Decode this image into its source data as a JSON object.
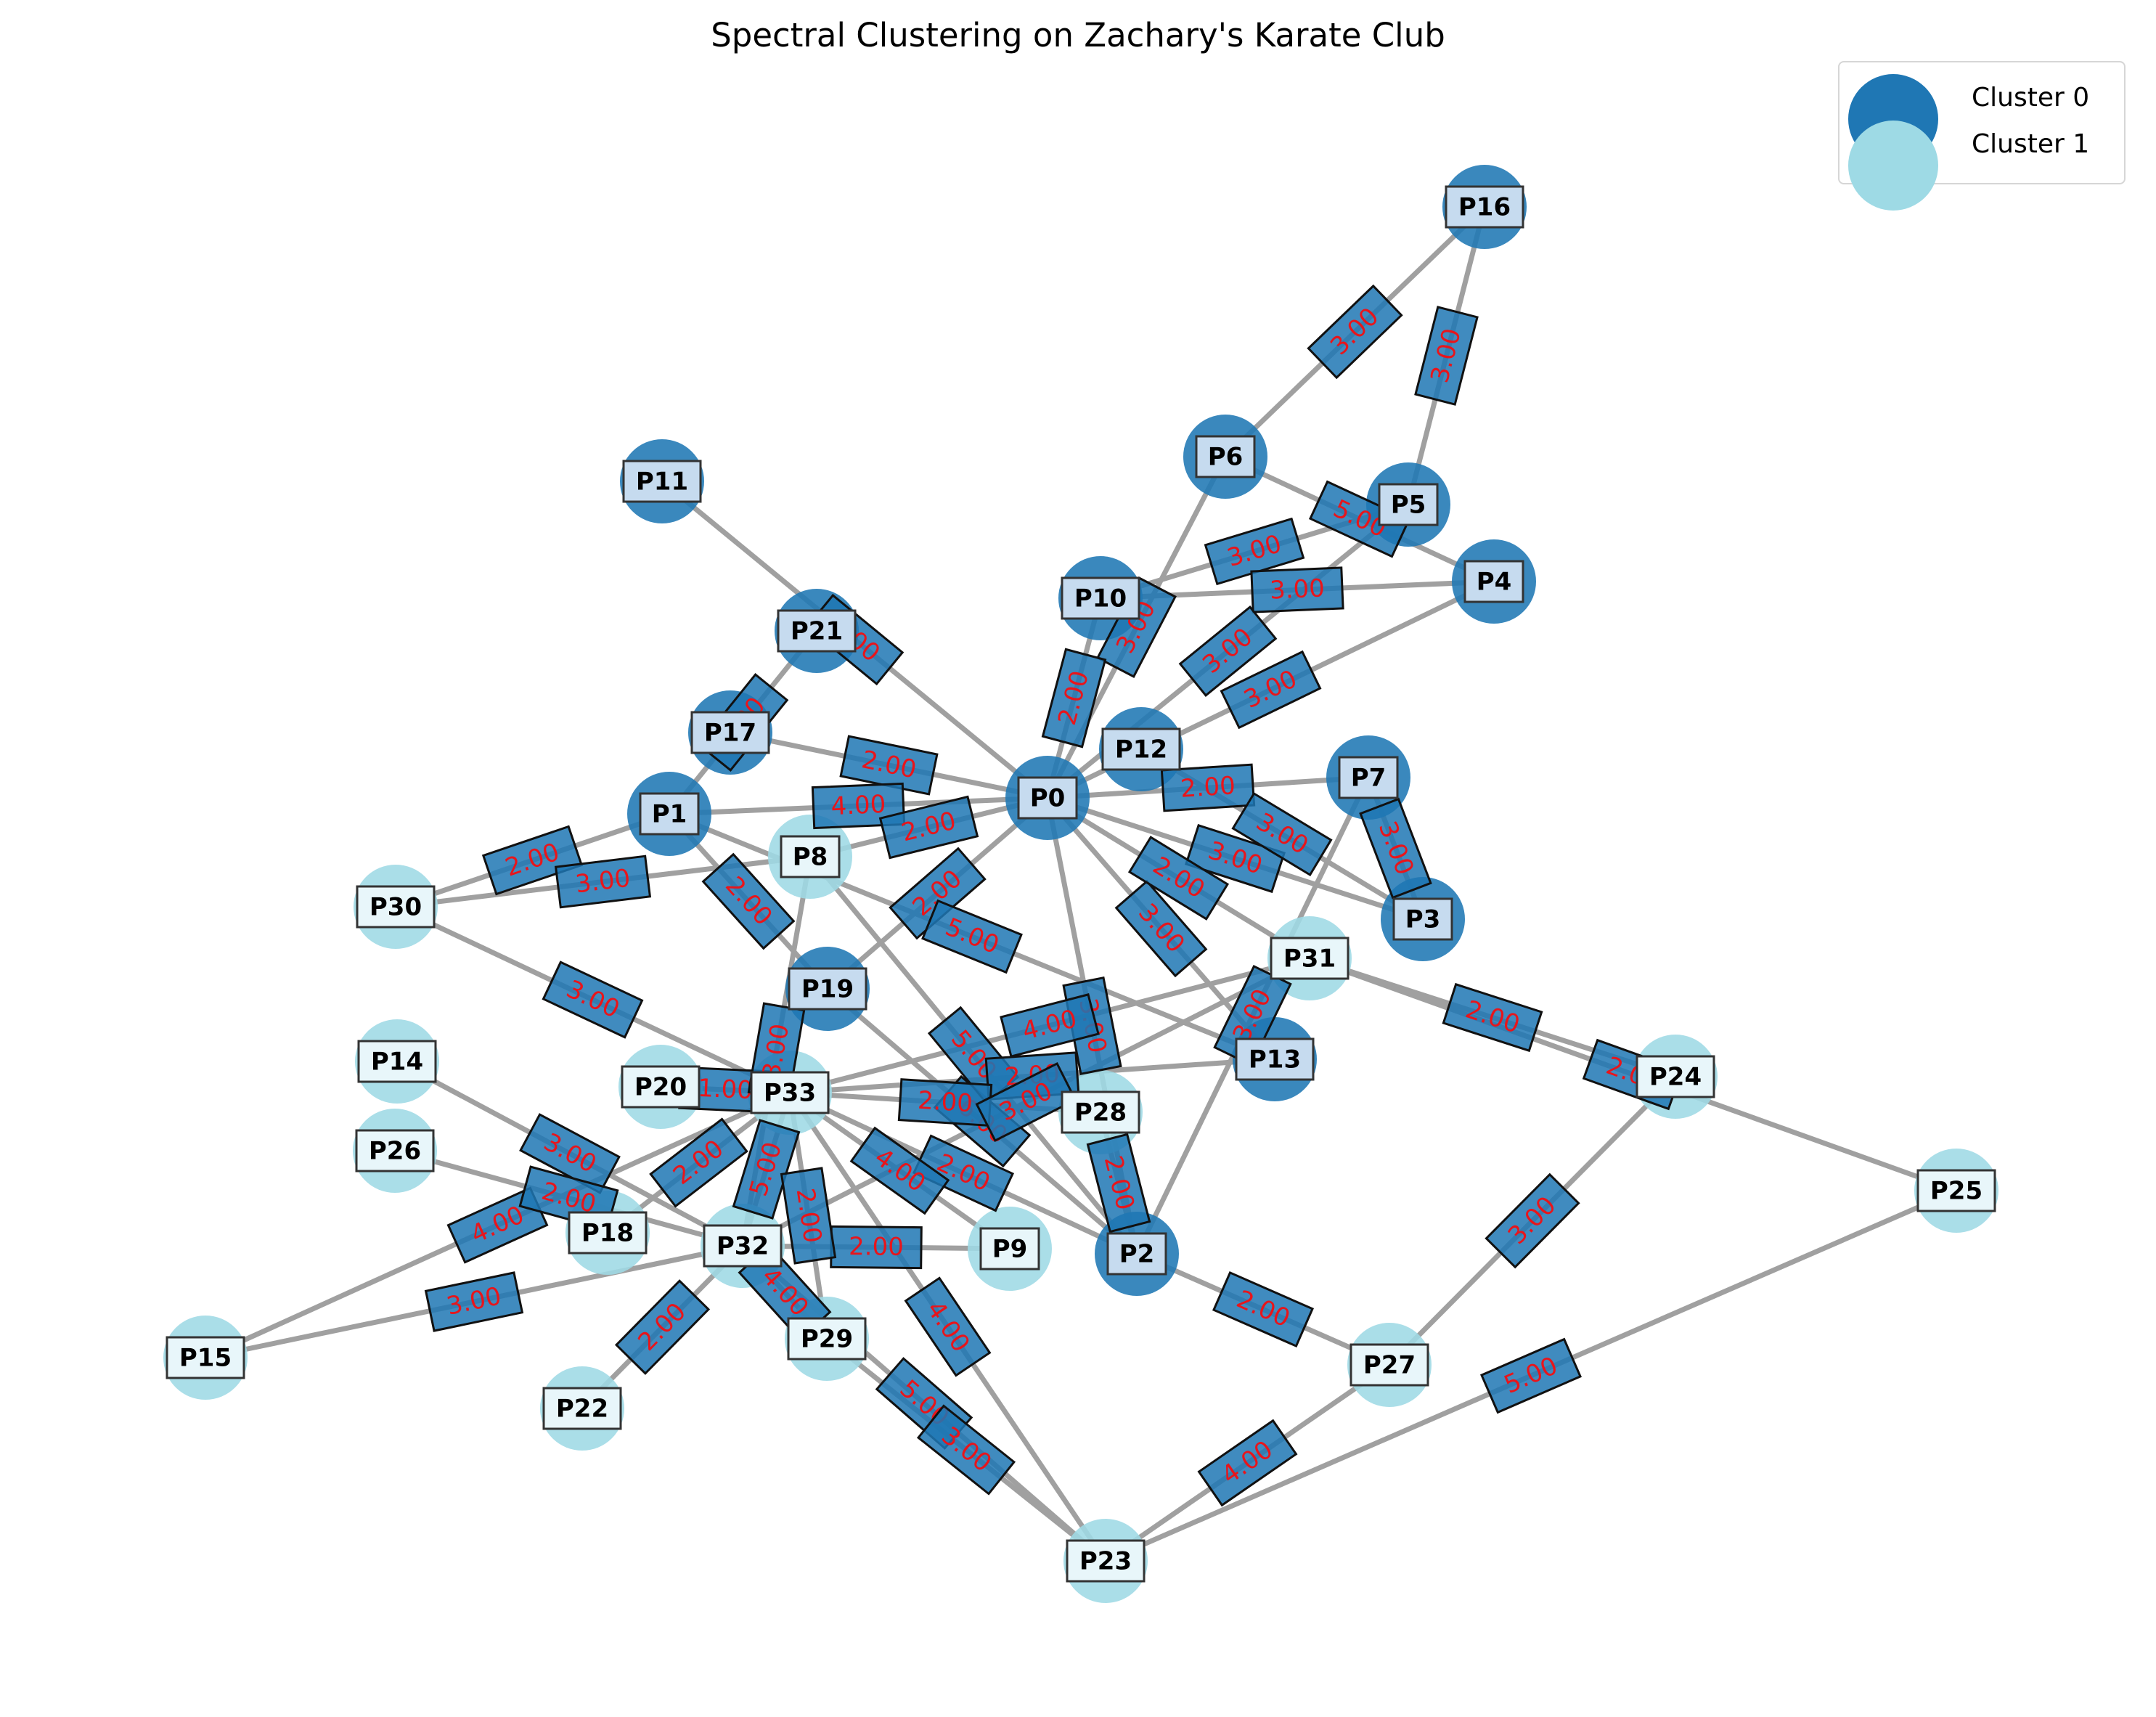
{
  "title": "Spectral Clustering on Zachary's Karate Club",
  "legend": [
    {
      "label": "Cluster 0",
      "color": "#1f77b4"
    },
    {
      "label": "Cluster 1",
      "color": "#9edae5"
    }
  ],
  "nodes": [
    {
      "id": "P0",
      "cluster": 0
    },
    {
      "id": "P1",
      "cluster": 0
    },
    {
      "id": "P2",
      "cluster": 0
    },
    {
      "id": "P3",
      "cluster": 0
    },
    {
      "id": "P4",
      "cluster": 0
    },
    {
      "id": "P5",
      "cluster": 0
    },
    {
      "id": "P6",
      "cluster": 0
    },
    {
      "id": "P7",
      "cluster": 0
    },
    {
      "id": "P8",
      "cluster": 1
    },
    {
      "id": "P9",
      "cluster": 1
    },
    {
      "id": "P10",
      "cluster": 0
    },
    {
      "id": "P11",
      "cluster": 0
    },
    {
      "id": "P12",
      "cluster": 0
    },
    {
      "id": "P13",
      "cluster": 0
    },
    {
      "id": "P14",
      "cluster": 1
    },
    {
      "id": "P15",
      "cluster": 1
    },
    {
      "id": "P16",
      "cluster": 0
    },
    {
      "id": "P17",
      "cluster": 0
    },
    {
      "id": "P18",
      "cluster": 1
    },
    {
      "id": "P19",
      "cluster": 0
    },
    {
      "id": "P20",
      "cluster": 1
    },
    {
      "id": "P21",
      "cluster": 0
    },
    {
      "id": "P22",
      "cluster": 1
    },
    {
      "id": "P23",
      "cluster": 1
    },
    {
      "id": "P24",
      "cluster": 1
    },
    {
      "id": "P25",
      "cluster": 1
    },
    {
      "id": "P26",
      "cluster": 1
    },
    {
      "id": "P27",
      "cluster": 1
    },
    {
      "id": "P28",
      "cluster": 1
    },
    {
      "id": "P29",
      "cluster": 1
    },
    {
      "id": "P30",
      "cluster": 1
    },
    {
      "id": "P31",
      "cluster": 1
    },
    {
      "id": "P32",
      "cluster": 1
    },
    {
      "id": "P33",
      "cluster": 1
    }
  ],
  "edges": [
    {
      "source": "P16",
      "target": "P6",
      "weight": "3.00"
    },
    {
      "source": "P16",
      "target": "P5",
      "weight": "3.00"
    },
    {
      "source": "P6",
      "target": "P4",
      "weight": "5.00"
    },
    {
      "source": "P5",
      "target": "P10",
      "weight": "3.00"
    },
    {
      "source": "P4",
      "target": "P10",
      "weight": "3.00"
    },
    {
      "source": "P6",
      "target": "P0",
      "weight": "3.00"
    },
    {
      "source": "P5",
      "target": "P0",
      "weight": "3.00"
    },
    {
      "source": "P4",
      "target": "P0",
      "weight": "3.00"
    },
    {
      "source": "P10",
      "target": "P0",
      "weight": "2.00"
    },
    {
      "source": "P11",
      "target": "P0",
      "weight": "2.00"
    },
    {
      "source": "P21",
      "target": "P1",
      "weight": "2.00"
    },
    {
      "source": "P17",
      "target": "P0",
      "weight": "2.00"
    },
    {
      "source": "P1",
      "target": "P0",
      "weight": "4.00"
    },
    {
      "source": "P8",
      "target": "P0",
      "weight": "2.00"
    },
    {
      "source": "P0",
      "target": "P7",
      "weight": "2.00"
    },
    {
      "source": "P0",
      "target": "P3",
      "weight": "3.00"
    },
    {
      "source": "P12",
      "target": "P3",
      "weight": "3.00"
    },
    {
      "source": "P7",
      "target": "P3",
      "weight": "3.00"
    },
    {
      "source": "P0",
      "target": "P2",
      "weight": "3.00"
    },
    {
      "source": "P0",
      "target": "P13",
      "weight": "3.00"
    },
    {
      "source": "P0",
      "target": "P31",
      "weight": "2.00"
    },
    {
      "source": "P0",
      "target": "P19",
      "weight": "2.00"
    },
    {
      "source": "P1",
      "target": "P30",
      "weight": "2.00"
    },
    {
      "source": "P30",
      "target": "P8",
      "weight": "3.00"
    },
    {
      "source": "P1",
      "target": "P19",
      "weight": "2.00"
    },
    {
      "source": "P1",
      "target": "P13",
      "weight": "5.00"
    },
    {
      "source": "P30",
      "target": "P33",
      "weight": "3.00"
    },
    {
      "source": "P19",
      "target": "P2",
      "weight": "6.00"
    },
    {
      "source": "P8",
      "target": "P2",
      "weight": "5.00"
    },
    {
      "source": "P33",
      "target": "P31",
      "weight": "4.00"
    },
    {
      "source": "P33",
      "target": "P13",
      "weight": "2.00"
    },
    {
      "source": "P33",
      "target": "P28",
      "weight": "2.00"
    },
    {
      "source": "P33",
      "target": "P2",
      "weight": "2.00"
    },
    {
      "source": "P33",
      "target": "P9",
      "weight": "4.00"
    },
    {
      "source": "P33",
      "target": "P23",
      "weight": "4.00"
    },
    {
      "source": "P31",
      "target": "P24",
      "weight": "2.00"
    },
    {
      "source": "P31",
      "target": "P25",
      "weight": "2.00"
    },
    {
      "source": "P24",
      "target": "P27",
      "weight": "3.00"
    },
    {
      "source": "P25",
      "target": "P23",
      "weight": "5.00"
    },
    {
      "source": "P27",
      "target": "P23",
      "weight": "4.00"
    },
    {
      "source": "P2",
      "target": "P27",
      "weight": "2.00"
    },
    {
      "source": "P2",
      "target": "P28",
      "weight": "2.00"
    },
    {
      "source": "P2",
      "target": "P7",
      "weight": "3.00"
    },
    {
      "source": "P32",
      "target": "P9",
      "weight": "2.00"
    },
    {
      "source": "P32",
      "target": "P23",
      "weight": "5.00"
    },
    {
      "source": "P29",
      "target": "P23",
      "weight": "3.00"
    },
    {
      "source": "P32",
      "target": "P22",
      "weight": "2.00"
    },
    {
      "source": "P32",
      "target": "P15",
      "weight": "3.00"
    },
    {
      "source": "P33",
      "target": "P15",
      "weight": "4.00"
    },
    {
      "source": "P32",
      "target": "P29",
      "weight": "4.00"
    },
    {
      "source": "P33",
      "target": "P20",
      "weight": "1.00"
    },
    {
      "source": "P32",
      "target": "P14",
      "weight": "3.00"
    },
    {
      "source": "P32",
      "target": "P26",
      "weight": "2.00"
    },
    {
      "source": "P33",
      "target": "P18",
      "weight": "2.00"
    },
    {
      "source": "P32",
      "target": "P33",
      "weight": "5.00"
    },
    {
      "source": "P32",
      "target": "P31",
      "weight": "3.00"
    },
    {
      "source": "P33",
      "target": "P29",
      "weight": "2.00"
    },
    {
      "source": "P32",
      "target": "P8",
      "weight": "3.00"
    }
  ]
}
